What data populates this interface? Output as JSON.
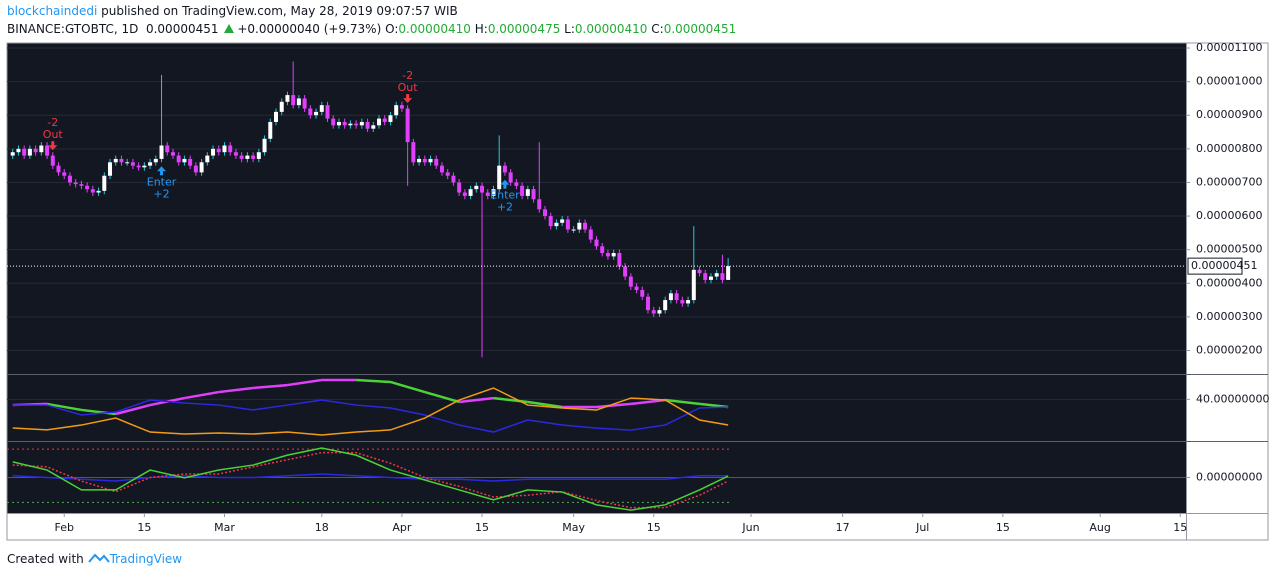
{
  "header": {
    "author": "blockchaindedi",
    "published": "published on TradingView.com, May 28, 2019 09:07:57 WIB",
    "symbol": "BINANCE:GTOBTC, 1D",
    "price": "0.00000451",
    "change": "+0.00000040 (+9.73%)",
    "ohlc": [
      {
        "label": "O:",
        "value": "0.00000410"
      },
      {
        "label": "H:",
        "value": "0.00000475"
      },
      {
        "label": "L:",
        "value": "0.00000410"
      },
      {
        "label": "C:",
        "value": "0.00000451"
      }
    ]
  },
  "chart_data": [
    {
      "type": "candlestick",
      "up_color": "#ffffff",
      "up_wick_color": "#26c6da",
      "down_color": "#e040fb",
      "grid_color": "#262a36",
      "xlim": [
        "2019-01-22",
        "2019-08-16"
      ],
      "xticks": [
        {
          "value": "2019-02-01",
          "label": "Feb"
        },
        {
          "value": "2019-02-15",
          "label": "15"
        },
        {
          "value": "2019-03-01",
          "label": "Mar"
        },
        {
          "value": "2019-03-18",
          "label": "18"
        },
        {
          "value": "2019-04-01",
          "label": "Apr"
        },
        {
          "value": "2019-04-15",
          "label": "15"
        },
        {
          "value": "2019-05-01",
          "label": "May"
        },
        {
          "value": "2019-05-15",
          "label": "15"
        },
        {
          "value": "2019-06-01",
          "label": "Jun"
        },
        {
          "value": "2019-06-17",
          "label": "17"
        },
        {
          "value": "2019-07-01",
          "label": "Jul"
        },
        {
          "value": "2019-07-15",
          "label": "15"
        },
        {
          "value": "2019-08-01",
          "label": "Aug"
        },
        {
          "value": "2019-08-15",
          "label": "15"
        }
      ],
      "ylim": [
        1.3e-06,
        1.115e-05
      ],
      "yticks": [
        {
          "value": 1.1e-05,
          "label": "0.00001100"
        },
        {
          "value": 1e-05,
          "label": "0.00001000"
        },
        {
          "value": 9e-06,
          "label": "0.00000900"
        },
        {
          "value": 8e-06,
          "label": "0.00000800"
        },
        {
          "value": 7e-06,
          "label": "0.00000700"
        },
        {
          "value": 6e-06,
          "label": "0.00000600"
        },
        {
          "value": 5e-06,
          "label": "0.00000500"
        },
        {
          "value": 4e-06,
          "label": "0.00000400"
        },
        {
          "value": 3e-06,
          "label": "0.00000300"
        },
        {
          "value": 2e-06,
          "label": "0.00000200"
        }
      ],
      "last_price": {
        "value": 4.51e-06,
        "label": "0.00000451"
      },
      "annotations": [
        {
          "x": "2019-01-30",
          "count": "-2",
          "label": "Out",
          "color": "#f23645",
          "direction": "down"
        },
        {
          "x": "2019-02-18",
          "label": "Enter",
          "count": "+2",
          "color": "#2196f3",
          "direction": "up"
        },
        {
          "x": "2019-04-02",
          "count": "-2",
          "label": "Out",
          "color": "#f23645",
          "direction": "down"
        },
        {
          "x": "2019-04-19",
          "label": "Enter",
          "count": "+2",
          "color": "#2196f3",
          "direction": "up"
        }
      ],
      "x": [
        "2019-01-23",
        "2019-01-24",
        "2019-01-25",
        "2019-01-26",
        "2019-01-27",
        "2019-01-28",
        "2019-01-29",
        "2019-01-30",
        "2019-01-31",
        "2019-02-01",
        "2019-02-02",
        "2019-02-03",
        "2019-02-04",
        "2019-02-05",
        "2019-02-06",
        "2019-02-07",
        "2019-02-08",
        "2019-02-09",
        "2019-02-10",
        "2019-02-11",
        "2019-02-12",
        "2019-02-13",
        "2019-02-14",
        "2019-02-15",
        "2019-02-16",
        "2019-02-17",
        "2019-02-18",
        "2019-02-19",
        "2019-02-20",
        "2019-02-21",
        "2019-02-22",
        "2019-02-23",
        "2019-02-24",
        "2019-02-25",
        "2019-02-26",
        "2019-02-27",
        "2019-02-28",
        "2019-03-01",
        "2019-03-02",
        "2019-03-03",
        "2019-03-04",
        "2019-03-05",
        "2019-03-06",
        "2019-03-07",
        "2019-03-08",
        "2019-03-09",
        "2019-03-10",
        "2019-03-11",
        "2019-03-12",
        "2019-03-13",
        "2019-03-14",
        "2019-03-15",
        "2019-03-16",
        "2019-03-17",
        "2019-03-18",
        "2019-03-19",
        "2019-03-20",
        "2019-03-21",
        "2019-03-22",
        "2019-03-23",
        "2019-03-24",
        "2019-03-25",
        "2019-03-26",
        "2019-03-27",
        "2019-03-28",
        "2019-03-29",
        "2019-03-30",
        "2019-03-31",
        "2019-04-01",
        "2019-04-02",
        "2019-04-03",
        "2019-04-04",
        "2019-04-05",
        "2019-04-06",
        "2019-04-07",
        "2019-04-08",
        "2019-04-09",
        "2019-04-10",
        "2019-04-11",
        "2019-04-12",
        "2019-04-13",
        "2019-04-14",
        "2019-04-15",
        "2019-04-16",
        "2019-04-17",
        "2019-04-18",
        "2019-04-19",
        "2019-04-20",
        "2019-04-21",
        "2019-04-22",
        "2019-04-23",
        "2019-04-24",
        "2019-04-25",
        "2019-04-26",
        "2019-04-27",
        "2019-04-28",
        "2019-04-29",
        "2019-04-30",
        "2019-05-01",
        "2019-05-02",
        "2019-05-03",
        "2019-05-04",
        "2019-05-05",
        "2019-05-06",
        "2019-05-07",
        "2019-05-08",
        "2019-05-09",
        "2019-05-10",
        "2019-05-11",
        "2019-05-12",
        "2019-05-13",
        "2019-05-14",
        "2019-05-15",
        "2019-05-16",
        "2019-05-17",
        "2019-05-18",
        "2019-05-19",
        "2019-05-20",
        "2019-05-21",
        "2019-05-22",
        "2019-05-23",
        "2019-05-24",
        "2019-05-25",
        "2019-05-26",
        "2019-05-27",
        "2019-05-28"
      ],
      "open": [
        7.8e-06,
        7.9e-06,
        8e-06,
        7.8e-06,
        8e-06,
        7.9e-06,
        8.1e-06,
        7.8e-06,
        7.5e-06,
        7.3e-06,
        7.2e-06,
        7e-06,
        6.95e-06,
        6.9e-06,
        6.8e-06,
        6.7e-06,
        6.75e-06,
        7.2e-06,
        7.6e-06,
        7.7e-06,
        7.6e-06,
        7.6e-06,
        7.5e-06,
        7.45e-06,
        7.5e-06,
        7.6e-06,
        7.7e-06,
        8.1e-06,
        7.9e-06,
        7.8e-06,
        7.6e-06,
        7.7e-06,
        7.5e-06,
        7.3e-06,
        7.6e-06,
        7.8e-06,
        8e-06,
        7.9e-06,
        8.1e-06,
        7.9e-06,
        7.8e-06,
        7.7e-06,
        7.8e-06,
        7.7e-06,
        7.9e-06,
        8.3e-06,
        8.8e-06,
        9.1e-06,
        9.4e-06,
        9.6e-06,
        9.3e-06,
        9.5e-06,
        9.2e-06,
        9e-06,
        9.1e-06,
        9.3e-06,
        8.9e-06,
        8.7e-06,
        8.8e-06,
        8.7e-06,
        8.75e-06,
        8.7e-06,
        8.8e-06,
        8.6e-06,
        8.7e-06,
        8.9e-06,
        8.8e-06,
        9e-06,
        9.3e-06,
        9.2e-06,
        8.2e-06,
        7.6e-06,
        7.7e-06,
        7.6e-06,
        7.7e-06,
        7.5e-06,
        7.3e-06,
        7.2e-06,
        7e-06,
        6.7e-06,
        6.6e-06,
        6.8e-06,
        6.9e-06,
        6.7e-06,
        6.6e-06,
        6.8e-06,
        7.5e-06,
        7.3e-06,
        7e-06,
        6.9e-06,
        6.6e-06,
        6.8e-06,
        6.5e-06,
        6.2e-06,
        6e-06,
        5.7e-06,
        5.8e-06,
        5.9e-06,
        5.6e-06,
        5.6e-06,
        5.8e-06,
        5.6e-06,
        5.3e-06,
        5.1e-06,
        4.9e-06,
        4.8e-06,
        4.9e-06,
        4.5e-06,
        4.2e-06,
        3.9e-06,
        3.8e-06,
        3.6e-06,
        3.2e-06,
        3.1e-06,
        3.2e-06,
        3.5e-06,
        3.7e-06,
        3.5e-06,
        3.4e-06,
        3.5e-06,
        4.4e-06,
        4.3e-06,
        4.1e-06,
        4.2e-06,
        4.3e-06,
        4.1e-06
      ],
      "high": [
        8e-06,
        8.1e-06,
        8.1e-06,
        8.1e-06,
        8.1e-06,
        8.2e-06,
        8.2e-06,
        7.9e-06,
        7.6e-06,
        7.4e-06,
        7.3e-06,
        7.1e-06,
        7.05e-06,
        7e-06,
        6.9e-06,
        6.85e-06,
        7.3e-06,
        7.7e-06,
        7.8e-06,
        7.8e-06,
        7.7e-06,
        7.7e-06,
        7.6e-06,
        7.6e-06,
        7.7e-06,
        7.8e-06,
        1.02e-05,
        8.2e-06,
        8e-06,
        7.9e-06,
        7.8e-06,
        7.8e-06,
        7.6e-06,
        7.7e-06,
        7.9e-06,
        8.1e-06,
        8.1e-06,
        8.2e-06,
        8.2e-06,
        8e-06,
        7.9e-06,
        7.9e-06,
        7.9e-06,
        8e-06,
        8.4e-06,
        8.9e-06,
        9.2e-06,
        9.5e-06,
        9.7e-06,
        1.06e-05,
        9.6e-06,
        9.6e-06,
        9.3e-06,
        9.2e-06,
        9.4e-06,
        9.4e-06,
        9e-06,
        8.9e-06,
        8.9e-06,
        8.85e-06,
        8.85e-06,
        8.9e-06,
        8.9e-06,
        8.8e-06,
        9e-06,
        9e-06,
        9.1e-06,
        9.4e-06,
        9.4e-06,
        9.3e-06,
        8.3e-06,
        7.8e-06,
        7.8e-06,
        7.8e-06,
        7.8e-06,
        7.6e-06,
        7.4e-06,
        7.3e-06,
        7.1e-06,
        6.8e-06,
        6.9e-06,
        7e-06,
        7e-06,
        6.8e-06,
        6.9e-06,
        8.4e-06,
        7.6e-06,
        7.4e-06,
        7.1e-06,
        7e-06,
        6.9e-06,
        6.9e-06,
        8.2e-06,
        6.3e-06,
        6.1e-06,
        5.9e-06,
        6e-06,
        6e-06,
        5.7e-06,
        5.9e-06,
        5.9e-06,
        5.7e-06,
        5.4e-06,
        5.2e-06,
        5e-06,
        5e-06,
        5e-06,
        4.6e-06,
        4.3e-06,
        4e-06,
        3.9e-06,
        3.7e-06,
        3.3e-06,
        3.3e-06,
        3.6e-06,
        3.8e-06,
        3.8e-06,
        3.6e-06,
        3.6e-06,
        5.7e-06,
        4.5e-06,
        4.4e-06,
        4.3e-06,
        4.4e-06,
        4.85e-06,
        4.75e-06
      ],
      "low": [
        7.7e-06,
        7.8e-06,
        7.7e-06,
        7.7e-06,
        7.8e-06,
        7.8e-06,
        7.7e-06,
        7.4e-06,
        7.2e-06,
        7.1e-06,
        6.9e-06,
        6.85e-06,
        6.8e-06,
        6.7e-06,
        6.6e-06,
        6.6e-06,
        6.65e-06,
        7.1e-06,
        7.5e-06,
        7.5e-06,
        7.5e-06,
        7.4e-06,
        7.35e-06,
        7.35e-06,
        7.4e-06,
        7.5e-06,
        7.6e-06,
        7.8e-06,
        7.7e-06,
        7.5e-06,
        7.5e-06,
        7.4e-06,
        7.2e-06,
        7.2e-06,
        7.5e-06,
        7.7e-06,
        7.8e-06,
        7.8e-06,
        7.8e-06,
        7.7e-06,
        7.6e-06,
        7.6e-06,
        7.6e-06,
        7.6e-06,
        7.8e-06,
        8.2e-06,
        8.7e-06,
        9e-06,
        9.3e-06,
        9.2e-06,
        9.2e-06,
        9.1e-06,
        8.9e-06,
        8.9e-06,
        9e-06,
        8.8e-06,
        8.6e-06,
        8.6e-06,
        8.6e-06,
        8.6e-06,
        8.6e-06,
        8.6e-06,
        8.5e-06,
        8.5e-06,
        8.6e-06,
        8.7e-06,
        8.7e-06,
        8.9e-06,
        9.1e-06,
        6.9e-06,
        7.5e-06,
        7.5e-06,
        7.5e-06,
        7.5e-06,
        7.4e-06,
        7.2e-06,
        7.1e-06,
        6.9e-06,
        6.6e-06,
        6.5e-06,
        6.5e-06,
        6.7e-06,
        1.8e-06,
        6.5e-06,
        6.5e-06,
        6.7e-06,
        7.2e-06,
        6.9e-06,
        6.8e-06,
        6.5e-06,
        6.5e-06,
        6.4e-06,
        6.1e-06,
        5.9e-06,
        5.6e-06,
        5.6e-06,
        5.7e-06,
        5.5e-06,
        5.5e-06,
        5.5e-06,
        5.5e-06,
        5.2e-06,
        5e-06,
        4.8e-06,
        4.7e-06,
        4.7e-06,
        4.4e-06,
        4.1e-06,
        3.8e-06,
        3.7e-06,
        3.5e-06,
        3.1e-06,
        3e-06,
        3e-06,
        3.1e-06,
        3.4e-06,
        3.4e-06,
        3.3e-06,
        3.3e-06,
        3.4e-06,
        4.2e-06,
        4e-06,
        4e-06,
        4.1e-06,
        4e-06,
        4.1e-06
      ],
      "close": [
        7.9e-06,
        8e-06,
        7.8e-06,
        8e-06,
        7.9e-06,
        8.1e-06,
        7.8e-06,
        7.5e-06,
        7.3e-06,
        7.2e-06,
        7e-06,
        6.95e-06,
        6.9e-06,
        6.8e-06,
        6.7e-06,
        6.75e-06,
        7.2e-06,
        7.6e-06,
        7.7e-06,
        7.6e-06,
        7.6e-06,
        7.5e-06,
        7.45e-06,
        7.5e-06,
        7.6e-06,
        7.7e-06,
        8.1e-06,
        7.9e-06,
        7.8e-06,
        7.6e-06,
        7.7e-06,
        7.5e-06,
        7.3e-06,
        7.6e-06,
        7.8e-06,
        8e-06,
        7.9e-06,
        8.1e-06,
        7.9e-06,
        7.8e-06,
        7.7e-06,
        7.8e-06,
        7.7e-06,
        7.9e-06,
        8.3e-06,
        8.8e-06,
        9.1e-06,
        9.4e-06,
        9.6e-06,
        9.3e-06,
        9.5e-06,
        9.2e-06,
        9e-06,
        9.1e-06,
        9.3e-06,
        8.9e-06,
        8.7e-06,
        8.8e-06,
        8.7e-06,
        8.75e-06,
        8.7e-06,
        8.8e-06,
        8.6e-06,
        8.7e-06,
        8.9e-06,
        8.8e-06,
        9e-06,
        9.3e-06,
        9.2e-06,
        8.2e-06,
        7.6e-06,
        7.7e-06,
        7.6e-06,
        7.7e-06,
        7.5e-06,
        7.3e-06,
        7.2e-06,
        7e-06,
        6.7e-06,
        6.6e-06,
        6.8e-06,
        6.9e-06,
        6.7e-06,
        6.6e-06,
        6.8e-06,
        7.5e-06,
        7.3e-06,
        7e-06,
        6.9e-06,
        6.6e-06,
        6.8e-06,
        6.5e-06,
        6.2e-06,
        6e-06,
        5.7e-06,
        5.8e-06,
        5.9e-06,
        5.6e-06,
        5.6e-06,
        5.8e-06,
        5.6e-06,
        5.3e-06,
        5.1e-06,
        4.9e-06,
        4.8e-06,
        4.9e-06,
        4.5e-06,
        4.2e-06,
        3.9e-06,
        3.8e-06,
        3.6e-06,
        3.2e-06,
        3.1e-06,
        3.2e-06,
        3.5e-06,
        3.7e-06,
        3.5e-06,
        3.4e-06,
        3.5e-06,
        4.4e-06,
        4.3e-06,
        4.1e-06,
        4.2e-06,
        4.3e-06,
        4.1e-06,
        4.51e-06
      ]
    },
    {
      "type": "line",
      "grid_color": "#262a36",
      "ylim": [
        15,
        55
      ],
      "yticks": [
        {
          "value": 40,
          "label": "40.00000000"
        }
      ],
      "x": [
        "2019-01-23",
        "2019-01-29",
        "2019-02-04",
        "2019-02-10",
        "2019-02-16",
        "2019-02-22",
        "2019-02-28",
        "2019-03-06",
        "2019-03-12",
        "2019-03-18",
        "2019-03-24",
        "2019-03-30",
        "2019-04-05",
        "2019-04-11",
        "2019-04-17",
        "2019-04-23",
        "2019-04-29",
        "2019-05-05",
        "2019-05-11",
        "2019-05-17",
        "2019-05-23",
        "2019-05-28"
      ],
      "series": [
        {
          "up_color": "#e040fb",
          "down_color": "#4cd137",
          "values": [
            36.5,
            37.2,
            33.5,
            31.0,
            36.5,
            40.8,
            44.5,
            47.0,
            48.8,
            51.9,
            51.9,
            50.7,
            44.5,
            38.4,
            40.8,
            38.4,
            35.3,
            35.3,
            37.2,
            39.6,
            37.2,
            35.3
          ]
        },
        {
          "color": "#2929e0",
          "values": [
            36.5,
            36.5,
            30.4,
            32.2,
            39.6,
            37.8,
            36.5,
            33.5,
            36.5,
            39.6,
            36.5,
            34.7,
            30.4,
            24.2,
            19.9,
            27.3,
            24.2,
            22.3,
            21.1,
            24.2,
            34.7,
            35.3
          ]
        },
        {
          "color": "#f39c12",
          "values": [
            22.4,
            21.2,
            24.2,
            28.5,
            19.9,
            18.7,
            19.3,
            18.7,
            19.9,
            18.1,
            19.9,
            21.2,
            28.5,
            39.6,
            47.0,
            36.5,
            34.7,
            33.5,
            40.8,
            39.6,
            27.3,
            24.2
          ]
        }
      ]
    },
    {
      "type": "line",
      "grid_color": "#3f51b5",
      "ylim": [
        -1,
        1
      ],
      "yticks": [
        {
          "value": 0,
          "label": "0.00000000"
        }
      ],
      "levels": [
        {
          "value": 0.8,
          "color": "#f23645"
        },
        {
          "value": -0.7,
          "color": "#4caf50"
        }
      ],
      "x": [
        "2019-01-23",
        "2019-01-29",
        "2019-02-04",
        "2019-02-10",
        "2019-02-16",
        "2019-02-22",
        "2019-02-28",
        "2019-03-06",
        "2019-03-12",
        "2019-03-18",
        "2019-03-24",
        "2019-03-30",
        "2019-04-05",
        "2019-04-11",
        "2019-04-17",
        "2019-04-23",
        "2019-04-29",
        "2019-05-05",
        "2019-05-11",
        "2019-05-17",
        "2019-05-23",
        "2019-05-28"
      ],
      "series": [
        {
          "color": "#2929e0",
          "values": [
            0.05,
            0.0,
            -0.05,
            -0.1,
            0.0,
            0.05,
            0.0,
            0.0,
            0.05,
            0.1,
            0.05,
            0.0,
            -0.05,
            -0.05,
            -0.1,
            -0.05,
            -0.05,
            -0.05,
            -0.05,
            -0.05,
            0.05,
            0.05
          ]
        },
        {
          "color": "#f23645",
          "dashed": true,
          "values": [
            0.35,
            0.3,
            -0.1,
            -0.4,
            0.0,
            0.1,
            0.1,
            0.3,
            0.5,
            0.7,
            0.7,
            0.4,
            0.0,
            -0.25,
            -0.55,
            -0.5,
            -0.4,
            -0.65,
            -0.85,
            -0.85,
            -0.5,
            -0.1
          ]
        },
        {
          "color": "#4cd137",
          "values": [
            0.44,
            0.21,
            -0.35,
            -0.35,
            0.21,
            -0.01,
            0.21,
            0.35,
            0.63,
            0.83,
            0.63,
            0.21,
            -0.07,
            -0.35,
            -0.63,
            -0.35,
            -0.41,
            -0.77,
            -0.92,
            -0.77,
            -0.35,
            0.04
          ]
        }
      ]
    }
  ],
  "footer": {
    "text": "Created with",
    "brand": "TradingView"
  }
}
